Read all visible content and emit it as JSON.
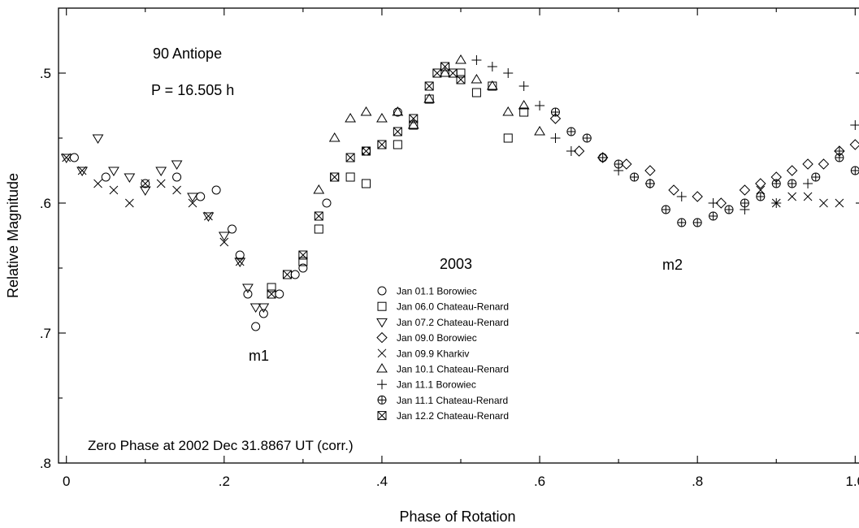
{
  "chart_data": {
    "type": "scatter",
    "title": "90 Antiope",
    "period_label": "P = 16.505 h",
    "year_label": "2003",
    "zero_phase_label": "Zero Phase at 2002 Dec 31.8867 UT (corr.)",
    "xlabel": "Phase of Rotation",
    "ylabel": "Relative Magnitude",
    "xlim": [
      -0.01,
      1.01
    ],
    "ylim": [
      0.8,
      0.45
    ],
    "y_inverted": true,
    "x_ticks": [
      {
        "value": 0.0,
        "label": "0"
      },
      {
        "value": 0.2,
        "label": ".2"
      },
      {
        "value": 0.4,
        "label": ".4"
      },
      {
        "value": 0.6,
        "label": ".6"
      },
      {
        "value": 0.8,
        "label": ".8"
      },
      {
        "value": 1.0,
        "label": "1.0"
      }
    ],
    "y_ticks": [
      {
        "value": 0.5,
        "label": ".5"
      },
      {
        "value": 0.6,
        "label": ".6"
      },
      {
        "value": 0.7,
        "label": ".7"
      },
      {
        "value": 0.8,
        "label": ".8"
      }
    ],
    "annotations": [
      {
        "text": "m1",
        "x": 0.24,
        "y": 0.71
      },
      {
        "text": "m2",
        "x": 0.775,
        "y": 0.67
      }
    ],
    "legend_position": "bottom-center",
    "grid": false,
    "series": [
      {
        "name": "Jan 01.1 Borowiec",
        "marker": "circle",
        "x": [
          0.01,
          0.05,
          0.1,
          0.14,
          0.17,
          0.19,
          0.21,
          0.22,
          0.23,
          0.24,
          0.25,
          0.27,
          0.29,
          0.3,
          0.33,
          0.38,
          0.42
        ],
        "y": [
          0.565,
          0.58,
          0.585,
          0.58,
          0.595,
          0.59,
          0.62,
          0.64,
          0.67,
          0.695,
          0.685,
          0.67,
          0.655,
          0.65,
          0.6,
          0.56,
          0.53
        ]
      },
      {
        "name": "Jan 06.0 Chateau-Renard",
        "marker": "square",
        "x": [
          0.26,
          0.28,
          0.3,
          0.32,
          0.34,
          0.36,
          0.38,
          0.4,
          0.42,
          0.44,
          0.46,
          0.48,
          0.5,
          0.52,
          0.54,
          0.56,
          0.58
        ],
        "y": [
          0.665,
          0.655,
          0.645,
          0.62,
          0.58,
          0.58,
          0.585,
          0.555,
          0.555,
          0.54,
          0.52,
          0.495,
          0.5,
          0.515,
          0.51,
          0.55,
          0.53
        ]
      },
      {
        "name": "Jan 07.2 Chateau-Renard",
        "marker": "tri-down",
        "x": [
          0.0,
          0.02,
          0.04,
          0.06,
          0.08,
          0.1,
          0.12,
          0.14,
          0.16,
          0.18,
          0.2,
          0.22,
          0.23,
          0.24,
          0.25
        ],
        "y": [
          0.565,
          0.575,
          0.55,
          0.575,
          0.58,
          0.59,
          0.575,
          0.57,
          0.595,
          0.61,
          0.625,
          0.645,
          0.665,
          0.68,
          0.68
        ]
      },
      {
        "name": "Jan 09.0 Borowiec",
        "marker": "diamond",
        "x": [
          0.62,
          0.65,
          0.68,
          0.71,
          0.74,
          0.77,
          0.8,
          0.83,
          0.86,
          0.88,
          0.9,
          0.92,
          0.94,
          0.96,
          0.98,
          1.0
        ],
        "y": [
          0.535,
          0.56,
          0.565,
          0.57,
          0.575,
          0.59,
          0.595,
          0.6,
          0.59,
          0.585,
          0.58,
          0.575,
          0.57,
          0.57,
          0.56,
          0.555
        ]
      },
      {
        "name": "Jan 09.9 Kharkiv",
        "marker": "x",
        "x": [
          0.0,
          0.02,
          0.04,
          0.06,
          0.08,
          0.1,
          0.12,
          0.14,
          0.16,
          0.18,
          0.2,
          0.22,
          0.88,
          0.9,
          0.92,
          0.94,
          0.96,
          0.98
        ],
        "y": [
          0.565,
          0.575,
          0.585,
          0.59,
          0.6,
          0.585,
          0.585,
          0.59,
          0.6,
          0.61,
          0.63,
          0.645,
          0.59,
          0.6,
          0.595,
          0.595,
          0.6,
          0.6
        ]
      },
      {
        "name": "Jan 10.1 Chateau-Renard",
        "marker": "tri-up",
        "x": [
          0.32,
          0.34,
          0.36,
          0.38,
          0.4,
          0.42,
          0.44,
          0.46,
          0.48,
          0.5,
          0.52,
          0.54,
          0.56,
          0.58,
          0.6
        ],
        "y": [
          0.59,
          0.55,
          0.535,
          0.53,
          0.535,
          0.53,
          0.54,
          0.52,
          0.5,
          0.49,
          0.505,
          0.51,
          0.53,
          0.525,
          0.545
        ]
      },
      {
        "name": "Jan 11.1 Borowiec",
        "marker": "plus",
        "x": [
          0.52,
          0.54,
          0.56,
          0.58,
          0.6,
          0.62,
          0.64,
          0.7,
          0.74,
          0.78,
          0.82,
          0.86,
          0.9,
          0.94,
          0.98,
          1.0
        ],
        "y": [
          0.49,
          0.495,
          0.5,
          0.51,
          0.525,
          0.55,
          0.56,
          0.575,
          0.585,
          0.595,
          0.6,
          0.605,
          0.6,
          0.585,
          0.56,
          0.54
        ]
      },
      {
        "name": "Jan 11.1 Chateau-Renard",
        "marker": "circle-plus",
        "x": [
          0.62,
          0.64,
          0.66,
          0.68,
          0.7,
          0.72,
          0.74,
          0.76,
          0.78,
          0.8,
          0.82,
          0.84,
          0.86,
          0.88,
          0.9,
          0.92,
          0.95,
          0.98,
          1.0
        ],
        "y": [
          0.53,
          0.545,
          0.55,
          0.565,
          0.57,
          0.58,
          0.585,
          0.605,
          0.615,
          0.615,
          0.61,
          0.605,
          0.6,
          0.595,
          0.585,
          0.585,
          0.58,
          0.565,
          0.575
        ]
      },
      {
        "name": "Jan 12.2 Chateau-Renard",
        "marker": "square-x",
        "x": [
          0.26,
          0.28,
          0.3,
          0.32,
          0.34,
          0.36,
          0.38,
          0.4,
          0.42,
          0.44,
          0.46,
          0.47,
          0.48,
          0.49,
          0.5
        ],
        "y": [
          0.67,
          0.655,
          0.64,
          0.61,
          0.58,
          0.565,
          0.56,
          0.555,
          0.545,
          0.535,
          0.51,
          0.5,
          0.495,
          0.5,
          0.505
        ]
      }
    ]
  }
}
